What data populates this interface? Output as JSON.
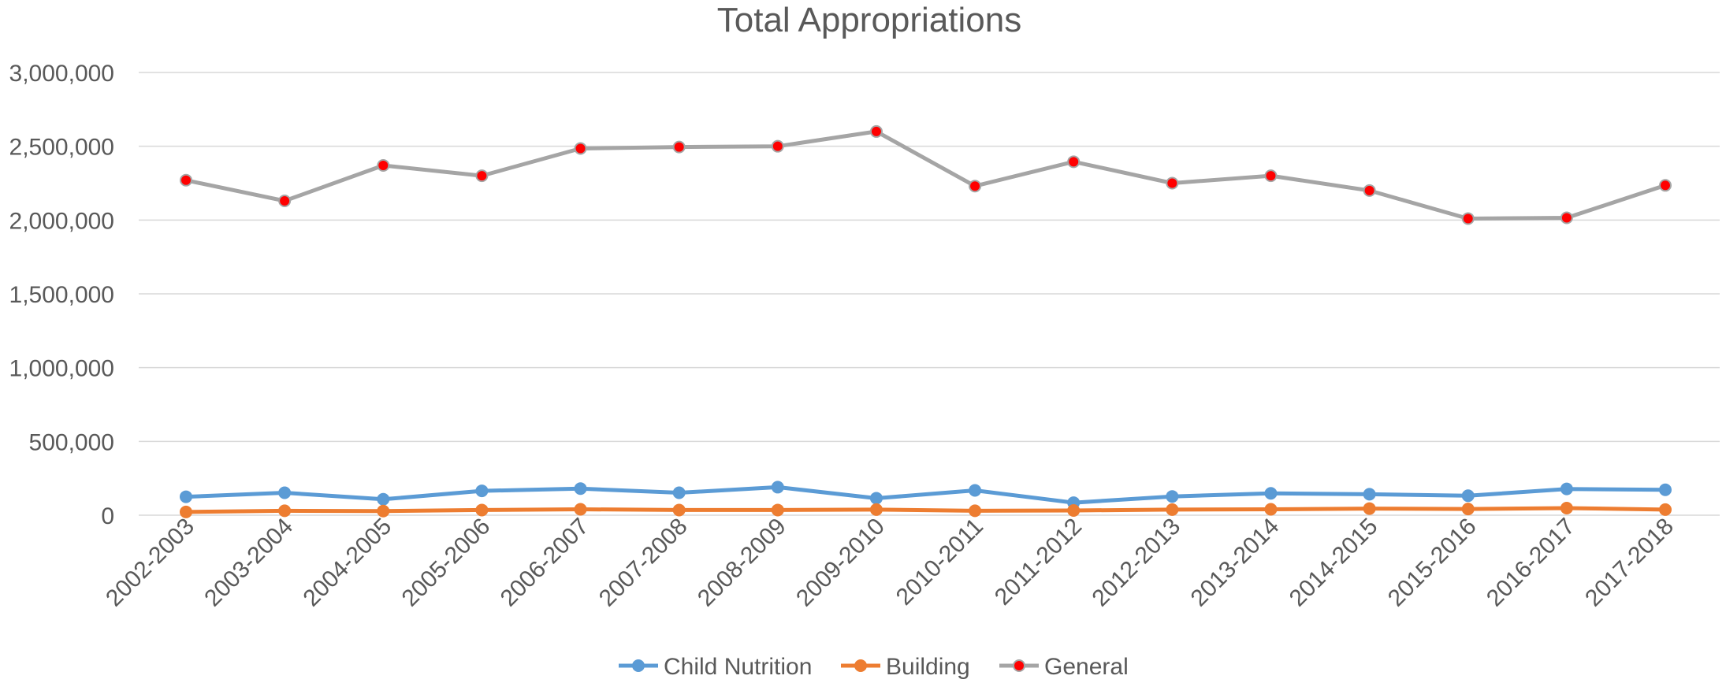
{
  "chart_data": {
    "type": "line",
    "title": "Total Appropriations",
    "xlabel": "",
    "ylabel": "",
    "categories": [
      "2002-2003",
      "2003-2004",
      "2004-2005",
      "2005-2006",
      "2006-2007",
      "2007-2008",
      "2008-2009",
      "2009-2010",
      "2010-2011",
      "2011-2012",
      "2012-2013",
      "2013-2014",
      "2014-2015",
      "2015-2016",
      "2016-2017",
      "2017-2018"
    ],
    "ylim": [
      0,
      3000000
    ],
    "yticks": [
      0,
      500000,
      1000000,
      1500000,
      2000000,
      2500000,
      3000000
    ],
    "ytick_labels": [
      "0",
      "500,000",
      "1,000,000",
      "1,500,000",
      "2,000,000",
      "2,500,000",
      "3,000,000"
    ],
    "grid": "horizontal",
    "legend_position": "bottom-center",
    "series": [
      {
        "name": "Child Nutrition",
        "color": "#5b9bd5",
        "marker_color": "#5b9bd5",
        "values": [
          125000,
          152000,
          108000,
          165000,
          180000,
          152000,
          190000,
          115000,
          168000,
          85000,
          127000,
          148000,
          142000,
          132000,
          178000,
          172000
        ]
      },
      {
        "name": "Building",
        "color": "#ed7d31",
        "marker_color": "#ed7d31",
        "values": [
          22000,
          30000,
          28000,
          35000,
          40000,
          35000,
          35000,
          38000,
          30000,
          32000,
          38000,
          40000,
          45000,
          42000,
          48000,
          38000
        ]
      },
      {
        "name": "General",
        "color": "#a5a5a5",
        "marker_color": "#ff0000",
        "values": [
          2270000,
          2130000,
          2370000,
          2300000,
          2485000,
          2495000,
          2500000,
          2600000,
          2230000,
          2395000,
          2250000,
          2300000,
          2200000,
          2010000,
          2015000,
          2235000
        ]
      }
    ]
  }
}
